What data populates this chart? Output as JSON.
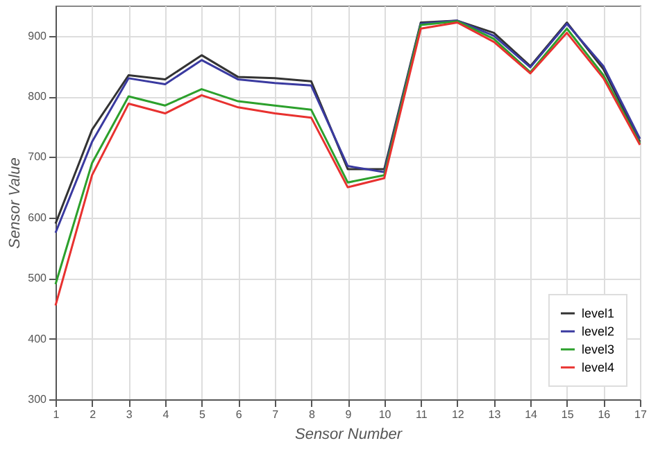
{
  "chart_data": {
    "type": "line",
    "xlabel": "Sensor Number",
    "ylabel": "Sensor Value",
    "x": [
      1,
      2,
      3,
      4,
      5,
      6,
      7,
      8,
      9,
      10,
      11,
      12,
      13,
      14,
      15,
      16,
      17
    ],
    "series": [
      {
        "name": "level1",
        "color": "#333333",
        "values": [
          590,
          745,
          835,
          828,
          868,
          832,
          830,
          825,
          680,
          680,
          922,
          925,
          905,
          850,
          922,
          845,
          725
        ]
      },
      {
        "name": "level2",
        "color": "#3a3aa0",
        "values": [
          575,
          725,
          830,
          820,
          860,
          828,
          822,
          818,
          685,
          675,
          920,
          925,
          900,
          848,
          920,
          850,
          730
        ]
      },
      {
        "name": "level3",
        "color": "#2ca02c",
        "values": [
          490,
          690,
          800,
          785,
          812,
          792,
          785,
          778,
          658,
          670,
          918,
          924,
          895,
          840,
          912,
          835,
          722
        ]
      },
      {
        "name": "level4",
        "color": "#e8312f",
        "values": [
          455,
          670,
          788,
          772,
          802,
          782,
          772,
          765,
          650,
          665,
          912,
          922,
          890,
          838,
          905,
          830,
          720
        ]
      }
    ],
    "xlim": [
      1,
      17
    ],
    "xticks": [
      1,
      2,
      3,
      4,
      5,
      6,
      7,
      8,
      9,
      10,
      11,
      12,
      13,
      14,
      15,
      16,
      17
    ],
    "ylim": [
      300,
      950
    ],
    "yticks": [
      300,
      400,
      500,
      600,
      700,
      800,
      900
    ],
    "grid": true,
    "legend": "bottom right",
    "marker": "none",
    "line_style": "solid"
  }
}
